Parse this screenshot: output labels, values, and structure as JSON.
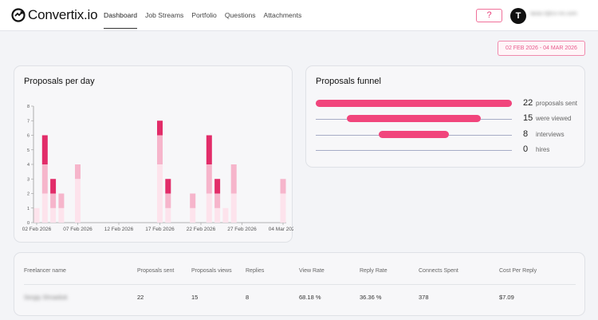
{
  "brand": {
    "name": "Convertix.io"
  },
  "nav": {
    "items": [
      {
        "label": "Dashboard",
        "active": true
      },
      {
        "label": "Job Streams",
        "active": false
      },
      {
        "label": "Portfolio",
        "active": false
      },
      {
        "label": "Questions",
        "active": false
      },
      {
        "label": "Attachments",
        "active": false
      }
    ]
  },
  "header": {
    "help_label": "?",
    "avatar_initial": "T",
    "user_email": "taras.t@cv-nn.com"
  },
  "date_range": {
    "label": "02 FEB 2026 - 04 MAR 2026"
  },
  "proposals_per_day": {
    "title": "Proposals per day"
  },
  "chart_data": {
    "type": "bar",
    "stacked": true,
    "title": "Proposals per day",
    "xlabel": "",
    "ylabel": "",
    "ylim": [
      0,
      8
    ],
    "yticks": [
      "0",
      "1",
      "2",
      "3",
      "4",
      "5",
      "6",
      "7",
      "8"
    ],
    "xtick_labels": [
      "02 Feb 2026",
      "07 Feb 2026",
      "12 Feb 2026",
      "17 Feb 2026",
      "22 Feb 2026",
      "27 Feb 2026",
      "04 Mar 2026"
    ],
    "categories": [
      "02 Feb",
      "03 Feb",
      "04 Feb",
      "05 Feb",
      "06 Feb",
      "07 Feb",
      "08 Feb",
      "09 Feb",
      "10 Feb",
      "11 Feb",
      "12 Feb",
      "13 Feb",
      "14 Feb",
      "15 Feb",
      "16 Feb",
      "17 Feb",
      "18 Feb",
      "19 Feb",
      "20 Feb",
      "21 Feb",
      "22 Feb",
      "23 Feb",
      "24 Feb",
      "25 Feb",
      "26 Feb",
      "27 Feb",
      "28 Feb",
      "01 Mar",
      "02 Mar",
      "03 Mar",
      "04 Mar"
    ],
    "series": [
      {
        "color": "#fde3ec",
        "values": [
          1,
          2,
          1,
          1,
          0,
          3,
          0,
          0,
          0,
          0,
          0,
          0,
          0,
          0,
          0,
          4,
          1,
          0,
          0,
          1,
          0,
          2,
          1,
          1,
          2,
          0,
          0,
          0,
          0,
          0,
          2
        ]
      },
      {
        "color": "#f6b5cb",
        "values": [
          0,
          2,
          1,
          1,
          0,
          1,
          0,
          0,
          0,
          0,
          0,
          0,
          0,
          0,
          0,
          2,
          1,
          0,
          0,
          1,
          0,
          2,
          1,
          0,
          2,
          0,
          0,
          0,
          0,
          0,
          1
        ]
      },
      {
        "color": "#e22c69",
        "values": [
          0,
          2,
          1,
          0,
          0,
          0,
          0,
          0,
          0,
          0,
          0,
          0,
          0,
          0,
          0,
          1,
          1,
          0,
          0,
          0,
          0,
          2,
          1,
          0,
          0,
          0,
          0,
          0,
          0,
          0,
          0
        ]
      }
    ],
    "legend": "none",
    "grid": false
  },
  "funnel": {
    "title": "Proposals funnel",
    "rows": [
      {
        "value": "22",
        "label": "proposals sent",
        "fraction": 1.0
      },
      {
        "value": "15",
        "label": "were viewed",
        "fraction": 0.68
      },
      {
        "value": "8",
        "label": "interviews",
        "fraction": 0.36
      },
      {
        "value": "0",
        "label": "hires",
        "fraction": 0.0
      }
    ]
  },
  "table": {
    "headers": [
      "Freelancer name",
      "Proposals sent",
      "Proposals views",
      "Replies",
      "View Rate",
      "Reply Rate",
      "Connects Spent",
      "Cost Per Reply"
    ],
    "rows": [
      [
        "Sergiy Shnaiduk",
        "22",
        "15",
        "8",
        "68.18 %",
        "36.36 %",
        "378",
        "$7.09"
      ]
    ]
  }
}
